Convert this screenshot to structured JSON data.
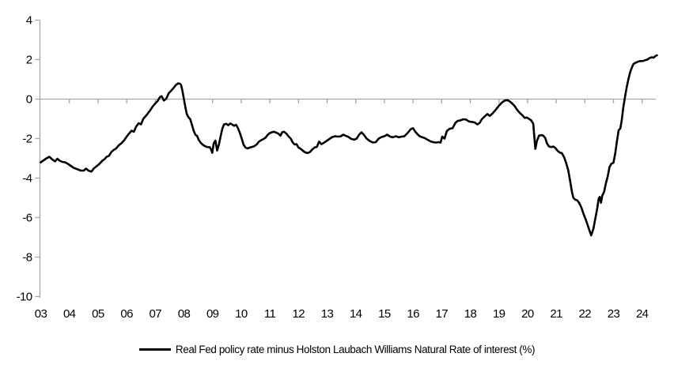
{
  "legend": {
    "label": "Real Fed policy rate minus Holston Laubach Williams Natural Rate of interest (%)"
  },
  "colors": {
    "series_line": "#000000",
    "axis_gray": "#A6A6A6",
    "label_text": "#000000",
    "background": "#FFFFFF"
  },
  "chart_data": {
    "type": "line",
    "title": "",
    "xlabel": "",
    "ylabel": "",
    "grid": "zero-line-only",
    "legend_position": "bottom-center",
    "ylim": [
      -10,
      4
    ],
    "xlim": [
      2003,
      2024.6
    ],
    "y_ticks": [
      4,
      2,
      0,
      -2,
      -4,
      -6,
      -8,
      -10
    ],
    "x_tick_years": [
      2003,
      2004,
      2005,
      2006,
      2007,
      2008,
      2009,
      2010,
      2011,
      2012,
      2013,
      2014,
      2015,
      2016,
      2017,
      2018,
      2019,
      2020,
      2021,
      2022,
      2023,
      2024
    ],
    "x_tick_labels": [
      "03",
      "04",
      "05",
      "06",
      "07",
      "08",
      "09",
      "10",
      "11",
      "12",
      "13",
      "14",
      "15",
      "16",
      "17",
      "18",
      "19",
      "20",
      "21",
      "22",
      "23",
      "24"
    ],
    "series": [
      {
        "name": "Real Fed policy rate minus Holston Laubach Williams Natural Rate of interest (%)",
        "color": "#000000",
        "points": [
          [
            2003.0,
            -3.2
          ],
          [
            2003.1,
            -3.1
          ],
          [
            2003.2,
            -3.0
          ],
          [
            2003.3,
            -2.92
          ],
          [
            2003.4,
            -3.05
          ],
          [
            2003.5,
            -3.15
          ],
          [
            2003.58,
            -3.02
          ],
          [
            2003.66,
            -3.12
          ],
          [
            2003.75,
            -3.18
          ],
          [
            2003.85,
            -3.2
          ],
          [
            2003.95,
            -3.28
          ],
          [
            2004.05,
            -3.38
          ],
          [
            2004.15,
            -3.48
          ],
          [
            2004.28,
            -3.55
          ],
          [
            2004.4,
            -3.62
          ],
          [
            2004.5,
            -3.62
          ],
          [
            2004.58,
            -3.52
          ],
          [
            2004.68,
            -3.63
          ],
          [
            2004.77,
            -3.67
          ],
          [
            2004.86,
            -3.5
          ],
          [
            2004.95,
            -3.4
          ],
          [
            2005.05,
            -3.28
          ],
          [
            2005.15,
            -3.12
          ],
          [
            2005.22,
            -3.05
          ],
          [
            2005.3,
            -2.92
          ],
          [
            2005.38,
            -2.87
          ],
          [
            2005.47,
            -2.67
          ],
          [
            2005.55,
            -2.57
          ],
          [
            2005.63,
            -2.5
          ],
          [
            2005.73,
            -2.33
          ],
          [
            2005.83,
            -2.22
          ],
          [
            2005.92,
            -2.07
          ],
          [
            2006.0,
            -1.9
          ],
          [
            2006.08,
            -1.75
          ],
          [
            2006.17,
            -1.6
          ],
          [
            2006.25,
            -1.65
          ],
          [
            2006.33,
            -1.4
          ],
          [
            2006.42,
            -1.22
          ],
          [
            2006.5,
            -1.28
          ],
          [
            2006.58,
            -1.0
          ],
          [
            2006.67,
            -0.85
          ],
          [
            2006.75,
            -0.7
          ],
          [
            2006.83,
            -0.55
          ],
          [
            2006.92,
            -0.35
          ],
          [
            2007.0,
            -0.22
          ],
          [
            2007.08,
            -0.1
          ],
          [
            2007.16,
            0.1
          ],
          [
            2007.22,
            0.15
          ],
          [
            2007.3,
            -0.07
          ],
          [
            2007.38,
            0.02
          ],
          [
            2007.47,
            0.3
          ],
          [
            2007.55,
            0.42
          ],
          [
            2007.63,
            0.55
          ],
          [
            2007.72,
            0.72
          ],
          [
            2007.8,
            0.8
          ],
          [
            2007.86,
            0.78
          ],
          [
            2007.9,
            0.72
          ],
          [
            2007.95,
            0.4
          ],
          [
            2008.0,
            0.0
          ],
          [
            2008.05,
            -0.4
          ],
          [
            2008.1,
            -0.75
          ],
          [
            2008.16,
            -0.92
          ],
          [
            2008.22,
            -1.02
          ],
          [
            2008.28,
            -1.3
          ],
          [
            2008.34,
            -1.6
          ],
          [
            2008.4,
            -1.8
          ],
          [
            2008.46,
            -1.87
          ],
          [
            2008.52,
            -2.07
          ],
          [
            2008.58,
            -2.2
          ],
          [
            2008.65,
            -2.3
          ],
          [
            2008.73,
            -2.38
          ],
          [
            2008.82,
            -2.43
          ],
          [
            2008.9,
            -2.43
          ],
          [
            2008.95,
            -2.55
          ],
          [
            2008.99,
            -2.72
          ],
          [
            2009.04,
            -2.25
          ],
          [
            2009.1,
            -2.1
          ],
          [
            2009.16,
            -2.6
          ],
          [
            2009.22,
            -2.3
          ],
          [
            2009.28,
            -1.9
          ],
          [
            2009.34,
            -1.5
          ],
          [
            2009.4,
            -1.28
          ],
          [
            2009.48,
            -1.25
          ],
          [
            2009.55,
            -1.32
          ],
          [
            2009.62,
            -1.23
          ],
          [
            2009.68,
            -1.28
          ],
          [
            2009.75,
            -1.35
          ],
          [
            2009.82,
            -1.3
          ],
          [
            2009.88,
            -1.45
          ],
          [
            2009.95,
            -1.7
          ],
          [
            2010.02,
            -2.0
          ],
          [
            2010.08,
            -2.3
          ],
          [
            2010.15,
            -2.45
          ],
          [
            2010.22,
            -2.5
          ],
          [
            2010.3,
            -2.45
          ],
          [
            2010.38,
            -2.42
          ],
          [
            2010.46,
            -2.38
          ],
          [
            2010.54,
            -2.3
          ],
          [
            2010.62,
            -2.15
          ],
          [
            2010.7,
            -2.08
          ],
          [
            2010.78,
            -2.02
          ],
          [
            2010.85,
            -1.95
          ],
          [
            2010.93,
            -1.8
          ],
          [
            2011.0,
            -1.72
          ],
          [
            2011.08,
            -1.67
          ],
          [
            2011.15,
            -1.65
          ],
          [
            2011.23,
            -1.7
          ],
          [
            2011.3,
            -1.75
          ],
          [
            2011.37,
            -1.85
          ],
          [
            2011.43,
            -1.68
          ],
          [
            2011.5,
            -1.65
          ],
          [
            2011.58,
            -1.75
          ],
          [
            2011.65,
            -1.88
          ],
          [
            2011.73,
            -2.0
          ],
          [
            2011.8,
            -2.2
          ],
          [
            2011.87,
            -2.3
          ],
          [
            2011.93,
            -2.28
          ],
          [
            2012.0,
            -2.45
          ],
          [
            2012.08,
            -2.52
          ],
          [
            2012.16,
            -2.62
          ],
          [
            2012.24,
            -2.7
          ],
          [
            2012.32,
            -2.73
          ],
          [
            2012.4,
            -2.68
          ],
          [
            2012.48,
            -2.55
          ],
          [
            2012.56,
            -2.45
          ],
          [
            2012.64,
            -2.42
          ],
          [
            2012.72,
            -2.15
          ],
          [
            2012.8,
            -2.28
          ],
          [
            2012.9,
            -2.2
          ],
          [
            2012.98,
            -2.12
          ],
          [
            2013.08,
            -2.02
          ],
          [
            2013.18,
            -1.92
          ],
          [
            2013.28,
            -1.88
          ],
          [
            2013.38,
            -1.9
          ],
          [
            2013.48,
            -1.88
          ],
          [
            2013.56,
            -1.8
          ],
          [
            2013.65,
            -1.85
          ],
          [
            2013.75,
            -1.92
          ],
          [
            2013.85,
            -2.02
          ],
          [
            2013.95,
            -2.05
          ],
          [
            2014.03,
            -2.0
          ],
          [
            2014.12,
            -1.8
          ],
          [
            2014.2,
            -1.68
          ],
          [
            2014.28,
            -1.8
          ],
          [
            2014.38,
            -2.0
          ],
          [
            2014.5,
            -2.13
          ],
          [
            2014.6,
            -2.2
          ],
          [
            2014.7,
            -2.18
          ],
          [
            2014.8,
            -2.0
          ],
          [
            2014.9,
            -1.92
          ],
          [
            2015.0,
            -1.88
          ],
          [
            2015.1,
            -1.8
          ],
          [
            2015.2,
            -1.9
          ],
          [
            2015.3,
            -1.93
          ],
          [
            2015.4,
            -1.88
          ],
          [
            2015.5,
            -1.93
          ],
          [
            2015.6,
            -1.9
          ],
          [
            2015.7,
            -1.88
          ],
          [
            2015.82,
            -1.7
          ],
          [
            2015.92,
            -1.52
          ],
          [
            2016.0,
            -1.47
          ],
          [
            2016.08,
            -1.65
          ],
          [
            2016.17,
            -1.8
          ],
          [
            2016.25,
            -1.9
          ],
          [
            2016.33,
            -1.93
          ],
          [
            2016.42,
            -1.98
          ],
          [
            2016.5,
            -2.05
          ],
          [
            2016.6,
            -2.13
          ],
          [
            2016.7,
            -2.18
          ],
          [
            2016.8,
            -2.2
          ],
          [
            2016.88,
            -2.18
          ],
          [
            2016.96,
            -2.2
          ],
          [
            2017.02,
            -1.9
          ],
          [
            2017.1,
            -2.0
          ],
          [
            2017.18,
            -1.62
          ],
          [
            2017.28,
            -1.5
          ],
          [
            2017.38,
            -1.47
          ],
          [
            2017.48,
            -1.2
          ],
          [
            2017.56,
            -1.1
          ],
          [
            2017.65,
            -1.08
          ],
          [
            2017.75,
            -1.02
          ],
          [
            2017.85,
            -1.03
          ],
          [
            2017.95,
            -1.13
          ],
          [
            2018.05,
            -1.15
          ],
          [
            2018.15,
            -1.18
          ],
          [
            2018.25,
            -1.28
          ],
          [
            2018.33,
            -1.2
          ],
          [
            2018.4,
            -1.02
          ],
          [
            2018.5,
            -0.88
          ],
          [
            2018.6,
            -0.75
          ],
          [
            2018.68,
            -0.85
          ],
          [
            2018.78,
            -0.72
          ],
          [
            2018.88,
            -0.55
          ],
          [
            2019.0,
            -0.33
          ],
          [
            2019.1,
            -0.18
          ],
          [
            2019.2,
            -0.07
          ],
          [
            2019.3,
            -0.05
          ],
          [
            2019.38,
            -0.12
          ],
          [
            2019.46,
            -0.22
          ],
          [
            2019.55,
            -0.35
          ],
          [
            2019.64,
            -0.55
          ],
          [
            2019.73,
            -0.7
          ],
          [
            2019.82,
            -0.82
          ],
          [
            2019.9,
            -0.95
          ],
          [
            2019.97,
            -0.93
          ],
          [
            2020.05,
            -1.0
          ],
          [
            2020.13,
            -1.08
          ],
          [
            2020.2,
            -1.25
          ],
          [
            2020.27,
            -2.52
          ],
          [
            2020.33,
            -2.1
          ],
          [
            2020.4,
            -1.85
          ],
          [
            2020.48,
            -1.82
          ],
          [
            2020.55,
            -1.85
          ],
          [
            2020.62,
            -1.97
          ],
          [
            2020.68,
            -2.25
          ],
          [
            2020.75,
            -2.4
          ],
          [
            2020.83,
            -2.43
          ],
          [
            2020.9,
            -2.4
          ],
          [
            2020.97,
            -2.47
          ],
          [
            2021.05,
            -2.62
          ],
          [
            2021.12,
            -2.7
          ],
          [
            2021.2,
            -2.74
          ],
          [
            2021.28,
            -2.95
          ],
          [
            2021.35,
            -3.25
          ],
          [
            2021.42,
            -3.6
          ],
          [
            2021.48,
            -4.1
          ],
          [
            2021.55,
            -4.7
          ],
          [
            2021.6,
            -5.0
          ],
          [
            2021.67,
            -5.1
          ],
          [
            2021.73,
            -5.12
          ],
          [
            2021.8,
            -5.25
          ],
          [
            2021.88,
            -5.5
          ],
          [
            2021.95,
            -5.8
          ],
          [
            2022.02,
            -6.05
          ],
          [
            2022.08,
            -6.3
          ],
          [
            2022.15,
            -6.6
          ],
          [
            2022.22,
            -6.9
          ],
          [
            2022.3,
            -6.55
          ],
          [
            2022.36,
            -6.1
          ],
          [
            2022.43,
            -5.55
          ],
          [
            2022.48,
            -5.05
          ],
          [
            2022.52,
            -4.95
          ],
          [
            2022.56,
            -5.25
          ],
          [
            2022.61,
            -4.88
          ],
          [
            2022.67,
            -4.7
          ],
          [
            2022.73,
            -4.3
          ],
          [
            2022.8,
            -3.9
          ],
          [
            2022.86,
            -3.45
          ],
          [
            2022.92,
            -3.28
          ],
          [
            2023.0,
            -3.22
          ],
          [
            2023.06,
            -2.75
          ],
          [
            2023.12,
            -2.15
          ],
          [
            2023.18,
            -1.58
          ],
          [
            2023.24,
            -1.48
          ],
          [
            2023.29,
            -1.05
          ],
          [
            2023.34,
            -0.45
          ],
          [
            2023.4,
            0.1
          ],
          [
            2023.46,
            0.6
          ],
          [
            2023.52,
            1.0
          ],
          [
            2023.58,
            1.35
          ],
          [
            2023.64,
            1.6
          ],
          [
            2023.7,
            1.78
          ],
          [
            2023.78,
            1.85
          ],
          [
            2023.86,
            1.9
          ],
          [
            2023.94,
            1.93
          ],
          [
            2024.02,
            1.93
          ],
          [
            2024.1,
            1.97
          ],
          [
            2024.18,
            2.0
          ],
          [
            2024.26,
            2.08
          ],
          [
            2024.34,
            2.12
          ],
          [
            2024.4,
            2.1
          ],
          [
            2024.46,
            2.18
          ],
          [
            2024.52,
            2.22
          ]
        ]
      }
    ]
  }
}
